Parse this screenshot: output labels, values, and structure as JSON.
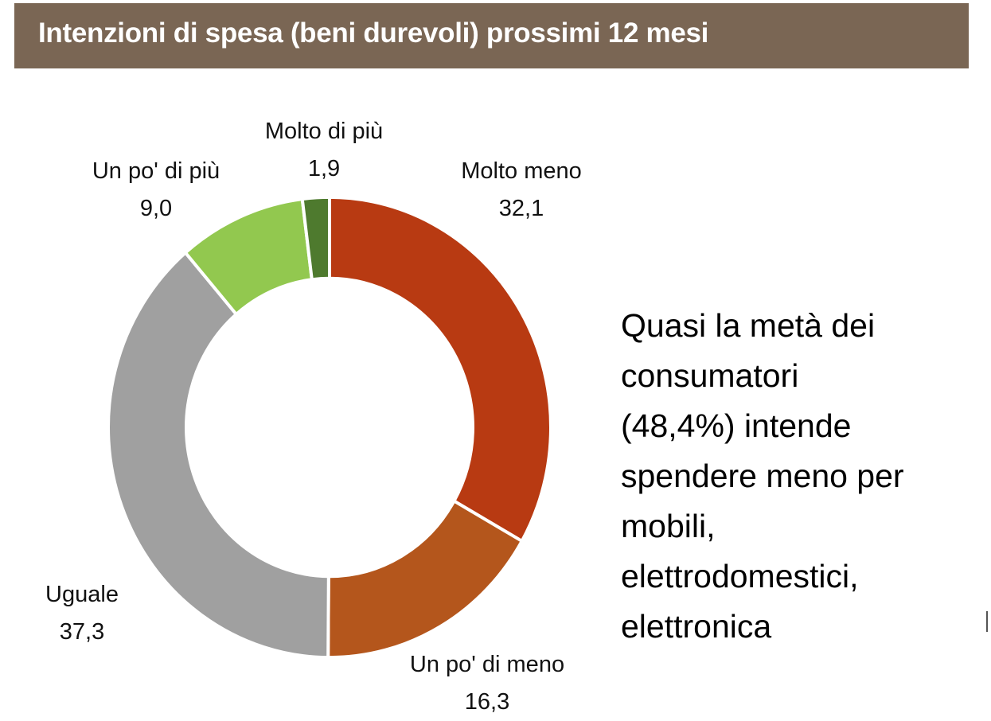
{
  "chart_data": {
    "type": "pie",
    "style": "donut",
    "title": "Intenzioni di spesa (beni durevoli) prossimi 12 mesi",
    "categories": [
      "Molto meno",
      "Un po' di meno",
      "Uguale",
      "Un po' di più",
      "Molto di più"
    ],
    "values": [
      32.1,
      16.3,
      37.3,
      9.0,
      1.9
    ],
    "value_labels": [
      "32,1",
      "16,3",
      "37,3",
      "9,0",
      "1,9"
    ],
    "colors": [
      "#B83A12",
      "#B4561C",
      "#A0A0A0",
      "#92C84F",
      "#4E7A2E"
    ],
    "legend": "none",
    "start": "top",
    "direction": "clockwise"
  },
  "note_lines": [
    "Quasi la metà dei",
    "consumatori",
    "(48,4%) intende",
    "spendere meno per",
    "mobili,",
    "elettrodomestici,",
    "elettronica"
  ],
  "colors": {
    "title_bar": "#7A6654",
    "title_text": "#FFFFFF"
  }
}
